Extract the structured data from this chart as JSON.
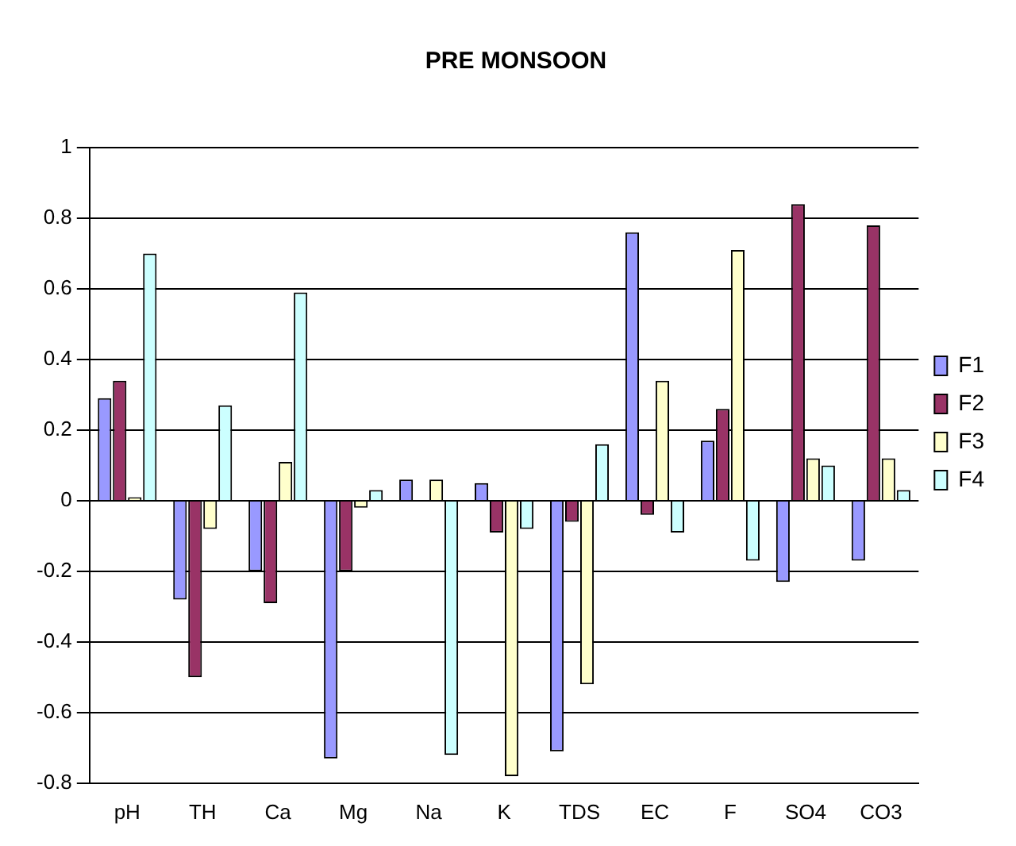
{
  "chart_data": {
    "type": "bar",
    "title": "PRE MONSOON",
    "categories": [
      "pH",
      "TH",
      "Ca",
      "Mg",
      "Na",
      "K",
      "TDS",
      "EC",
      "F",
      "SO4",
      "CO3"
    ],
    "series": [
      {
        "name": "F1",
        "color": "#9999ff",
        "values": [
          0.29,
          -0.28,
          -0.2,
          -0.73,
          0.06,
          0.05,
          -0.71,
          0.76,
          0.17,
          -0.23,
          -0.17
        ]
      },
      {
        "name": "F2",
        "color": "#993366",
        "values": [
          0.34,
          -0.5,
          -0.29,
          -0.2,
          0,
          -0.09,
          -0.06,
          -0.04,
          0.26,
          0.84,
          0.78
        ]
      },
      {
        "name": "F3",
        "color": "#ffffcc",
        "values": [
          0.01,
          -0.08,
          0.11,
          -0.02,
          0.06,
          -0.78,
          -0.52,
          0.34,
          0.71,
          0.12,
          0.12
        ]
      },
      {
        "name": "F4",
        "color": "#ccffff",
        "values": [
          0.7,
          0.27,
          0.59,
          0.03,
          -0.72,
          -0.08,
          0.16,
          -0.09,
          -0.17,
          0.1,
          0.03
        ]
      }
    ],
    "ylim": [
      -0.8,
      1
    ],
    "yticks": [
      -0.8,
      -0.6,
      -0.4,
      -0.2,
      0,
      0.2,
      0.4,
      0.6,
      0.8,
      1
    ],
    "grid": "y",
    "legend": "right"
  }
}
